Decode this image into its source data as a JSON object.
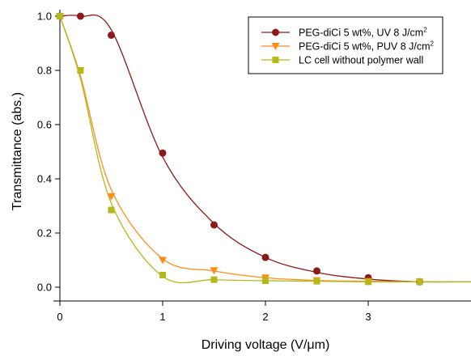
{
  "chart_data": {
    "type": "line",
    "xlabel": "Driving voltage (V/μm)",
    "ylabel": "Transmittance (abs.)",
    "xlim": [
      0,
      4
    ],
    "ylim": [
      0,
      1.0
    ],
    "x_ticks": [
      "0",
      "1",
      "2",
      "3"
    ],
    "y_ticks": [
      "0.0",
      "0.2",
      "0.4",
      "0.6",
      "0.8",
      "1.0"
    ],
    "grid": false,
    "legend_position": "top-right",
    "series": [
      {
        "name_main": "PEG-diCi 5 wt%, UV 8 J/cm",
        "name_sup": "2",
        "color": "#8b1a1a",
        "marker": "circle",
        "x": [
          0,
          0.2,
          0.5,
          1.0,
          1.5,
          2.0,
          2.5,
          3.0,
          3.5
        ],
        "y": [
          1.0,
          1.0,
          0.93,
          0.495,
          0.23,
          0.11,
          0.06,
          0.035,
          0.02
        ],
        "curve_y": [
          1.0,
          1.0,
          0.95,
          0.48,
          0.235,
          0.11,
          0.055,
          0.03,
          0.02
        ]
      },
      {
        "name_main": "PEG-diCi 5 wt%, PUV 8 J/cm",
        "name_sup": "2",
        "color": "#ff8c1a",
        "marker": "triangle-down",
        "x": [
          0,
          0.2,
          0.5,
          1.0,
          1.5,
          2.0,
          2.5,
          3.0,
          3.5
        ],
        "y": [
          1.0,
          0.8,
          0.335,
          0.1,
          0.062,
          0.035,
          0.025,
          0.022,
          0.02
        ],
        "curve_y": [
          1.0,
          0.78,
          0.36,
          0.105,
          0.06,
          0.035,
          0.025,
          0.022,
          0.02
        ]
      },
      {
        "name_main": "LC cell without polymer wall",
        "name_sup": "",
        "color": "#b5b81a",
        "marker": "square",
        "x": [
          0,
          0.2,
          0.5,
          1.0,
          1.5,
          2.0,
          2.5,
          3.0,
          3.5
        ],
        "y": [
          1.0,
          0.8,
          0.285,
          0.045,
          0.028,
          0.024,
          0.022,
          0.02,
          0.02
        ],
        "curve_y": [
          1.0,
          0.77,
          0.31,
          0.04,
          0.028,
          0.024,
          0.022,
          0.02,
          0.02
        ]
      }
    ]
  }
}
